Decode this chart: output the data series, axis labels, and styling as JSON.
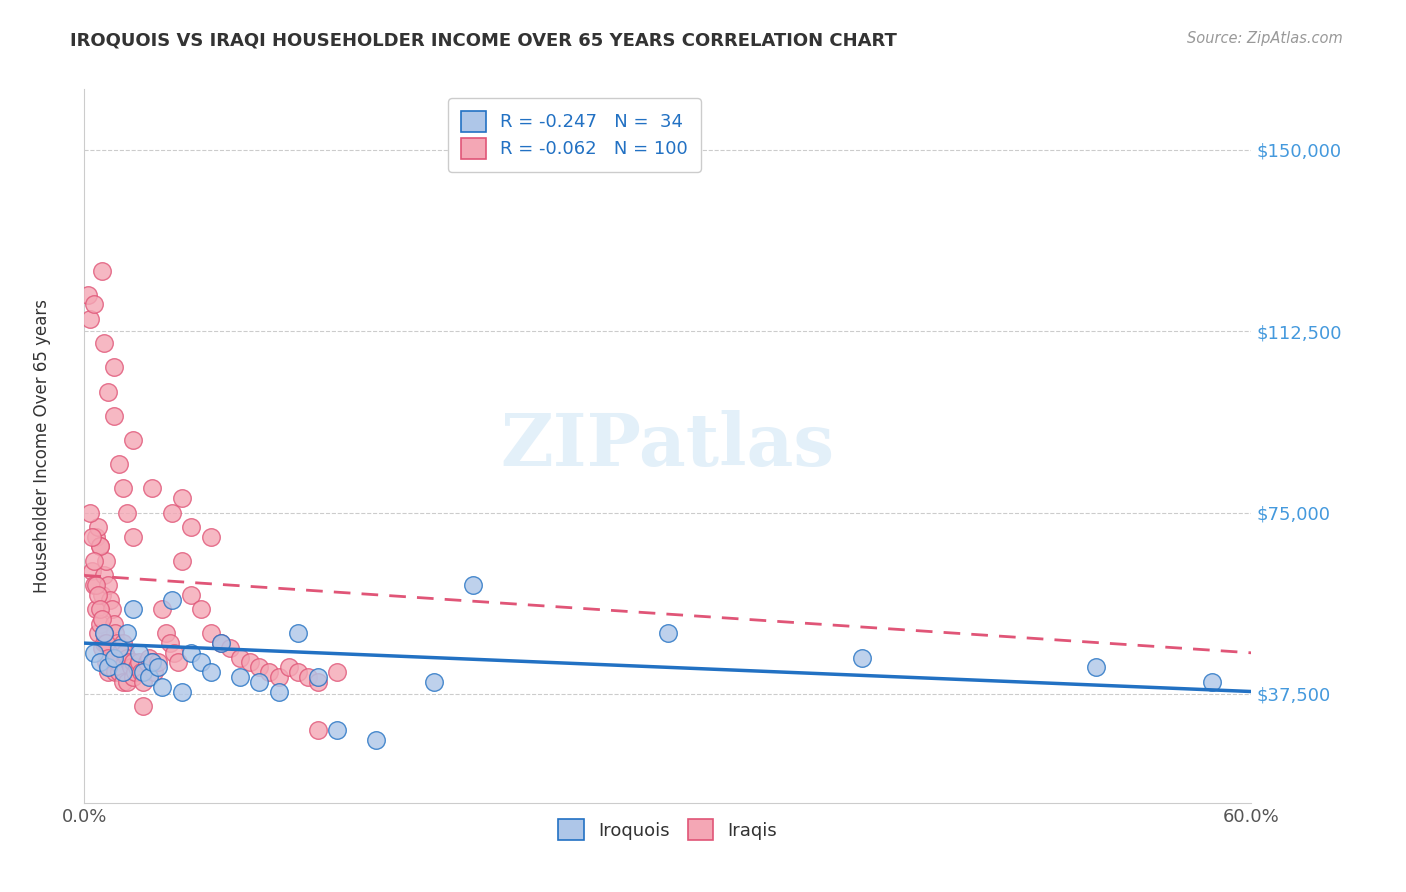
{
  "title": "IROQUOIS VS IRAQI HOUSEHOLDER INCOME OVER 65 YEARS CORRELATION CHART",
  "source": "Source: ZipAtlas.com",
  "ylabel": "Householder Income Over 65 years",
  "xlim": [
    0.0,
    0.6
  ],
  "ylim": [
    15000,
    162500
  ],
  "xticks": [
    0.0,
    0.1,
    0.2,
    0.3,
    0.4,
    0.5,
    0.6
  ],
  "xticklabels": [
    "0.0%",
    "",
    "",
    "",
    "",
    "",
    "60.0%"
  ],
  "ytick_values": [
    37500,
    75000,
    112500,
    150000
  ],
  "ytick_labels": [
    "$37,500",
    "$75,000",
    "$112,500",
    "$150,000"
  ],
  "grid_color": "#cccccc",
  "background_color": "#ffffff",
  "iroquois_color": "#aec6e8",
  "iraqis_color": "#f4a7b5",
  "iroquois_line_color": "#2271c3",
  "iraqis_line_color": "#e05577",
  "legend_label1": "R = -0.247   N =  34",
  "legend_label2": "R = -0.062   N = 100",
  "legend_label_iroquois": "Iroquois",
  "legend_label_iraqis": "Iraqis",
  "iroquois_x": [
    0.005,
    0.008,
    0.01,
    0.012,
    0.015,
    0.018,
    0.02,
    0.022,
    0.025,
    0.028,
    0.03,
    0.033,
    0.035,
    0.038,
    0.04,
    0.045,
    0.05,
    0.055,
    0.06,
    0.065,
    0.07,
    0.08,
    0.09,
    0.1,
    0.11,
    0.12,
    0.13,
    0.15,
    0.18,
    0.2,
    0.3,
    0.4,
    0.52,
    0.58
  ],
  "iroquois_y": [
    46000,
    44000,
    50000,
    43000,
    45000,
    47000,
    42000,
    50000,
    55000,
    46000,
    42000,
    41000,
    44000,
    43000,
    39000,
    57000,
    38000,
    46000,
    44000,
    42000,
    48000,
    41000,
    40000,
    38000,
    50000,
    41000,
    30000,
    28000,
    40000,
    60000,
    50000,
    45000,
    43000,
    40000
  ],
  "iraqis_x": [
    0.002,
    0.003,
    0.004,
    0.005,
    0.005,
    0.006,
    0.006,
    0.007,
    0.007,
    0.008,
    0.008,
    0.009,
    0.009,
    0.01,
    0.01,
    0.011,
    0.011,
    0.012,
    0.012,
    0.013,
    0.013,
    0.014,
    0.015,
    0.015,
    0.016,
    0.016,
    0.017,
    0.017,
    0.018,
    0.018,
    0.019,
    0.019,
    0.02,
    0.02,
    0.021,
    0.022,
    0.022,
    0.023,
    0.024,
    0.025,
    0.025,
    0.026,
    0.027,
    0.028,
    0.029,
    0.03,
    0.032,
    0.033,
    0.035,
    0.036,
    0.038,
    0.04,
    0.042,
    0.044,
    0.046,
    0.048,
    0.05,
    0.055,
    0.06,
    0.065,
    0.07,
    0.075,
    0.08,
    0.085,
    0.09,
    0.095,
    0.1,
    0.105,
    0.11,
    0.115,
    0.12,
    0.13,
    0.015,
    0.025,
    0.035,
    0.045,
    0.05,
    0.055,
    0.065,
    0.12,
    0.009,
    0.01,
    0.012,
    0.015,
    0.018,
    0.02,
    0.022,
    0.025,
    0.03,
    0.008,
    0.003,
    0.004,
    0.005,
    0.006,
    0.007,
    0.008,
    0.009,
    0.01,
    0.011,
    0.012
  ],
  "iraqis_y": [
    120000,
    115000,
    63000,
    118000,
    60000,
    70000,
    55000,
    72000,
    50000,
    68000,
    52000,
    58000,
    47000,
    62000,
    48000,
    65000,
    44000,
    60000,
    42000,
    57000,
    43000,
    55000,
    52000,
    44000,
    50000,
    42000,
    48000,
    44000,
    47000,
    42000,
    45000,
    43000,
    48000,
    40000,
    46000,
    45000,
    40000,
    44000,
    43000,
    44000,
    41000,
    42000,
    43000,
    44000,
    42000,
    40000,
    44000,
    45000,
    44000,
    42000,
    44000,
    55000,
    50000,
    48000,
    46000,
    44000,
    65000,
    58000,
    55000,
    50000,
    48000,
    47000,
    45000,
    44000,
    43000,
    42000,
    41000,
    43000,
    42000,
    41000,
    40000,
    42000,
    105000,
    90000,
    80000,
    75000,
    78000,
    72000,
    70000,
    30000,
    125000,
    110000,
    100000,
    95000,
    85000,
    80000,
    75000,
    70000,
    35000,
    68000,
    75000,
    70000,
    65000,
    60000,
    58000,
    55000,
    53000,
    50000,
    48000,
    45000
  ]
}
